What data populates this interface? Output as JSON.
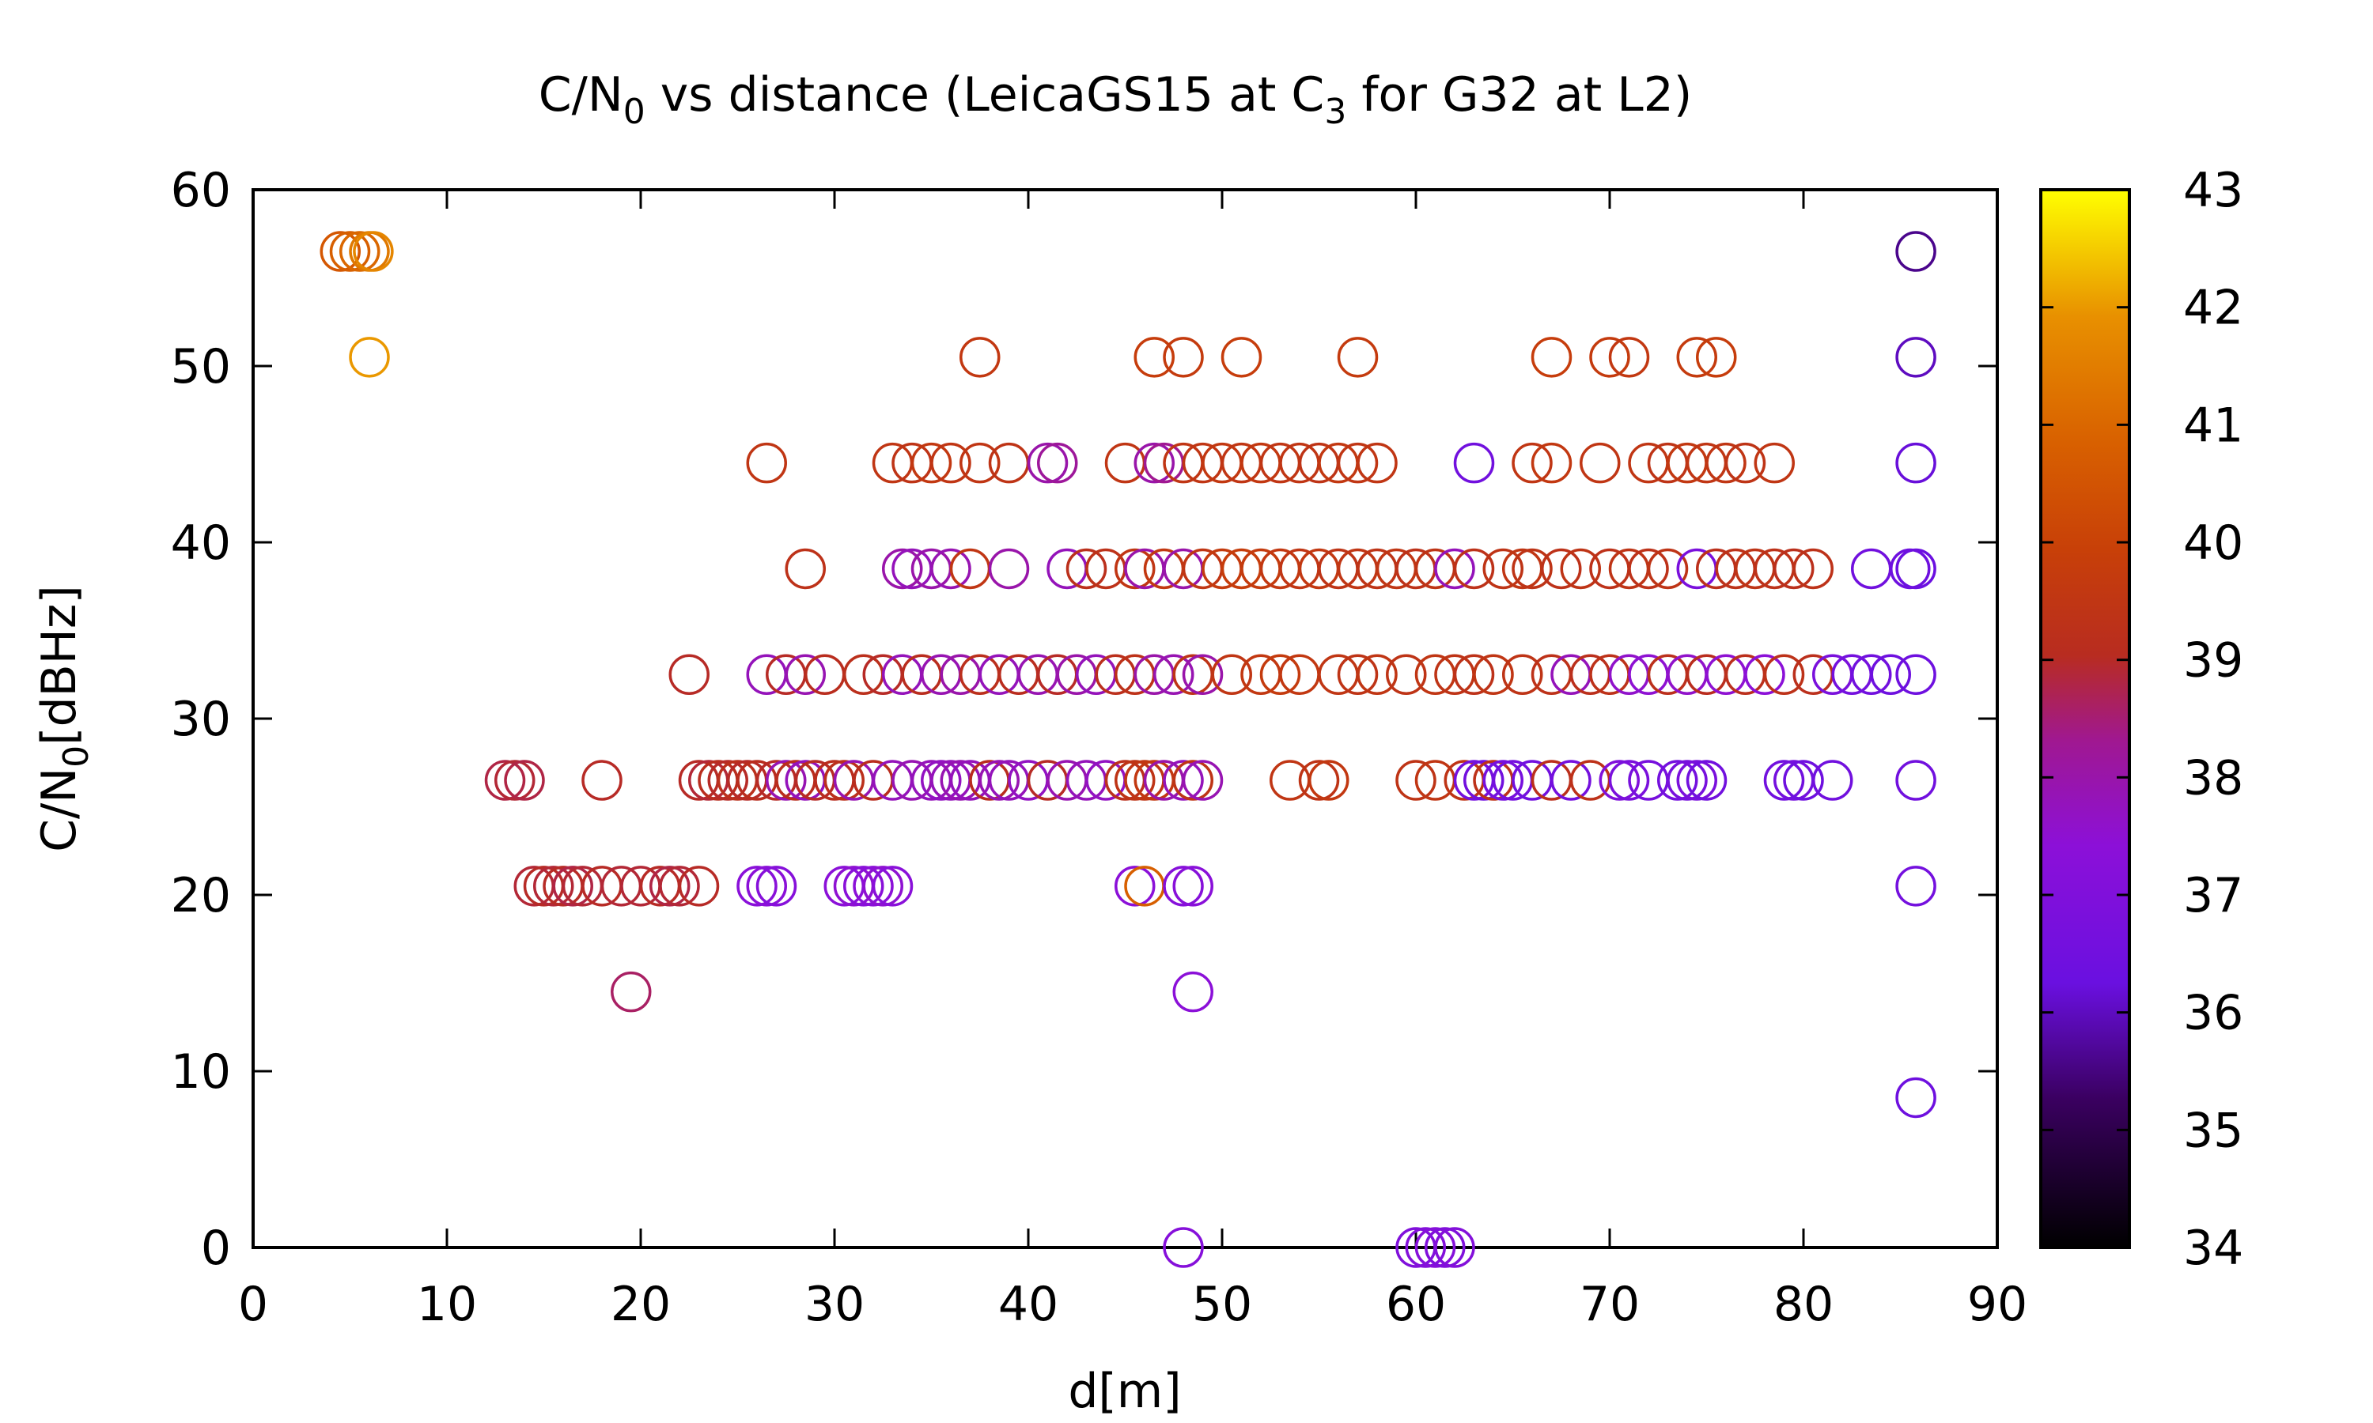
{
  "chart_data": {
    "type": "scatter",
    "title": {
      "main": "C/N",
      "main_sub": "0",
      "mid": " vs distance (LeicaGS15 at C",
      "mid_sub": "3",
      "end": " for G32 at L2)"
    },
    "xlabel": "d[m]",
    "ylabel": {
      "main": "C/N",
      "sub": "0",
      "end": "[dBHz]"
    },
    "xlim": [
      0,
      90
    ],
    "ylim": [
      0,
      60
    ],
    "x_ticks": [
      0,
      10,
      20,
      30,
      40,
      50,
      60,
      70,
      80,
      90
    ],
    "y_ticks": [
      0,
      10,
      20,
      30,
      40,
      50,
      60
    ],
    "colorbar": {
      "min": 34,
      "max": 43,
      "ticks": [
        34,
        35,
        36,
        37,
        38,
        39,
        40,
        41,
        42,
        43
      ]
    },
    "marker": "open-circle",
    "grid": false,
    "points": [
      [
        4.5,
        56.5,
        40.6
      ],
      [
        5.0,
        56.5,
        40.8
      ],
      [
        5.5,
        56.5,
        41.0
      ],
      [
        6.0,
        56.5,
        41.4
      ],
      [
        6.2,
        56.5,
        41.7
      ],
      [
        6.0,
        50.5,
        42.0
      ],
      [
        37.5,
        50.5,
        39.6
      ],
      [
        46.5,
        50.5,
        39.8
      ],
      [
        48.0,
        50.5,
        39.7
      ],
      [
        51.0,
        50.5,
        39.8
      ],
      [
        57.0,
        50.5,
        39.7
      ],
      [
        67.0,
        50.5,
        39.8
      ],
      [
        70.0,
        50.5,
        39.7
      ],
      [
        71.0,
        50.5,
        39.6
      ],
      [
        74.5,
        50.5,
        39.7
      ],
      [
        75.5,
        50.5,
        39.8
      ],
      [
        85.8,
        56.5,
        35.6
      ],
      [
        85.8,
        50.5,
        36.0
      ],
      [
        85.8,
        44.5,
        36.2
      ],
      [
        85.8,
        38.5,
        36.3
      ],
      [
        85.8,
        32.5,
        36.4
      ],
      [
        85.8,
        26.5,
        36.5
      ],
      [
        85.8,
        20.5,
        36.6
      ],
      [
        85.8,
        8.5,
        36.4
      ],
      [
        26.5,
        44.5,
        39.5
      ],
      [
        33.0,
        44.5,
        39.5
      ],
      [
        34.0,
        44.5,
        39.4
      ],
      [
        35.0,
        44.5,
        39.6
      ],
      [
        36.0,
        44.5,
        39.5
      ],
      [
        37.5,
        44.5,
        39.5
      ],
      [
        39.0,
        44.5,
        39.4
      ],
      [
        41.0,
        44.5,
        38.0
      ],
      [
        41.5,
        44.5,
        38.2
      ],
      [
        45.0,
        44.5,
        39.5
      ],
      [
        46.5,
        44.5,
        38.0
      ],
      [
        47.0,
        44.5,
        38.3
      ],
      [
        48.0,
        44.5,
        39.5
      ],
      [
        49.0,
        44.5,
        39.5
      ],
      [
        50.0,
        44.5,
        39.6
      ],
      [
        51.0,
        44.5,
        39.5
      ],
      [
        52.0,
        44.5,
        39.6
      ],
      [
        53.0,
        44.5,
        39.5
      ],
      [
        54.0,
        44.5,
        39.5
      ],
      [
        55.0,
        44.5,
        39.4
      ],
      [
        56.0,
        44.5,
        39.6
      ],
      [
        57.0,
        44.5,
        39.5
      ],
      [
        58.0,
        44.5,
        39.5
      ],
      [
        63.0,
        44.5,
        36.5
      ],
      [
        66.0,
        44.5,
        39.5
      ],
      [
        67.0,
        44.5,
        39.6
      ],
      [
        69.5,
        44.5,
        39.5
      ],
      [
        72.0,
        44.5,
        39.5
      ],
      [
        73.0,
        44.5,
        39.4
      ],
      [
        74.0,
        44.5,
        39.6
      ],
      [
        75.0,
        44.5,
        39.5
      ],
      [
        76.0,
        44.5,
        39.5
      ],
      [
        77.0,
        44.5,
        39.4
      ],
      [
        78.5,
        44.5,
        39.5
      ],
      [
        28.5,
        38.5,
        39.3
      ],
      [
        33.5,
        38.5,
        38.0
      ],
      [
        34.0,
        38.5,
        37.8
      ],
      [
        35.0,
        38.5,
        38.0
      ],
      [
        36.0,
        38.5,
        37.9
      ],
      [
        37.0,
        38.5,
        39.5
      ],
      [
        39.0,
        38.5,
        38.0
      ],
      [
        42.0,
        38.5,
        37.8
      ],
      [
        43.0,
        38.5,
        39.2
      ],
      [
        44.0,
        38.5,
        39.3
      ],
      [
        45.5,
        38.5,
        39.5
      ],
      [
        46.0,
        38.5,
        38.0
      ],
      [
        47.0,
        38.5,
        39.6
      ],
      [
        48.0,
        38.5,
        38.0
      ],
      [
        49.0,
        38.5,
        39.5
      ],
      [
        50.0,
        38.5,
        39.7
      ],
      [
        51.0,
        38.5,
        39.8
      ],
      [
        52.0,
        38.5,
        39.7
      ],
      [
        53.0,
        38.5,
        39.6
      ],
      [
        54.0,
        38.5,
        39.5
      ],
      [
        55.0,
        38.5,
        39.6
      ],
      [
        56.0,
        38.5,
        39.4
      ],
      [
        57.0,
        38.5,
        39.5
      ],
      [
        58.0,
        38.5,
        39.4
      ],
      [
        59.0,
        38.5,
        39.5
      ],
      [
        60.0,
        38.5,
        39.3
      ],
      [
        61.0,
        38.5,
        39.4
      ],
      [
        62.0,
        38.5,
        37.8
      ],
      [
        63.0,
        38.5,
        39.3
      ],
      [
        64.5,
        38.5,
        39.4
      ],
      [
        65.5,
        38.5,
        39.5
      ],
      [
        66.0,
        38.5,
        39.4
      ],
      [
        67.5,
        38.5,
        39.3
      ],
      [
        68.5,
        38.5,
        39.4
      ],
      [
        70.0,
        38.5,
        39.3
      ],
      [
        71.0,
        38.5,
        39.4
      ],
      [
        72.0,
        38.5,
        39.3
      ],
      [
        73.0,
        38.5,
        39.4
      ],
      [
        74.5,
        38.5,
        36.8
      ],
      [
        75.5,
        38.5,
        39.2
      ],
      [
        76.5,
        38.5,
        39.3
      ],
      [
        77.5,
        38.5,
        39.4
      ],
      [
        78.5,
        38.5,
        39.3
      ],
      [
        79.5,
        38.5,
        39.2
      ],
      [
        80.5,
        38.5,
        39.3
      ],
      [
        83.5,
        38.5,
        36.5
      ],
      [
        85.5,
        38.5,
        36.4
      ],
      [
        22.5,
        32.5,
        39.0
      ],
      [
        26.5,
        32.5,
        37.8
      ],
      [
        27.5,
        32.5,
        39.0
      ],
      [
        28.5,
        32.5,
        37.9
      ],
      [
        29.5,
        32.5,
        39.1
      ],
      [
        31.5,
        32.5,
        39.2
      ],
      [
        32.5,
        32.5,
        39.0
      ],
      [
        33.5,
        32.5,
        37.8
      ],
      [
        34.5,
        32.5,
        39.1
      ],
      [
        35.5,
        32.5,
        37.9
      ],
      [
        36.5,
        32.5,
        38.0
      ],
      [
        37.5,
        32.5,
        39.2
      ],
      [
        38.5,
        32.5,
        37.8
      ],
      [
        39.5,
        32.5,
        39.1
      ],
      [
        40.5,
        32.5,
        37.9
      ],
      [
        41.5,
        32.5,
        39.0
      ],
      [
        42.5,
        32.5,
        38.0
      ],
      [
        43.5,
        32.5,
        37.8
      ],
      [
        44.5,
        32.5,
        39.2
      ],
      [
        45.5,
        32.5,
        39.3
      ],
      [
        46.5,
        32.5,
        38.0
      ],
      [
        47.5,
        32.5,
        37.9
      ],
      [
        48.5,
        32.5,
        39.4
      ],
      [
        49.0,
        32.5,
        38.0
      ],
      [
        50.5,
        32.5,
        39.5
      ],
      [
        52.0,
        32.5,
        39.6
      ],
      [
        53.0,
        32.5,
        39.7
      ],
      [
        54.0,
        32.5,
        39.6
      ],
      [
        56.0,
        32.5,
        39.5
      ],
      [
        57.0,
        32.5,
        39.4
      ],
      [
        58.0,
        32.5,
        39.5
      ],
      [
        59.5,
        32.5,
        39.4
      ],
      [
        61.0,
        32.5,
        39.5
      ],
      [
        62.0,
        32.5,
        39.4
      ],
      [
        63.0,
        32.5,
        39.3
      ],
      [
        64.0,
        32.5,
        39.5
      ],
      [
        65.5,
        32.5,
        39.4
      ],
      [
        67.0,
        32.5,
        39.3
      ],
      [
        68.0,
        32.5,
        37.8
      ],
      [
        69.0,
        32.5,
        39.2
      ],
      [
        70.0,
        32.5,
        39.3
      ],
      [
        71.0,
        32.5,
        37.6
      ],
      [
        72.0,
        32.5,
        37.5
      ],
      [
        73.0,
        32.5,
        39.2
      ],
      [
        74.0,
        32.5,
        37.6
      ],
      [
        75.0,
        32.5,
        39.1
      ],
      [
        76.0,
        32.5,
        37.5
      ],
      [
        77.0,
        32.5,
        39.2
      ],
      [
        78.0,
        32.5,
        37.4
      ],
      [
        79.0,
        32.5,
        39.3
      ],
      [
        80.5,
        32.5,
        39.2
      ],
      [
        81.5,
        32.5,
        36.8
      ],
      [
        82.5,
        32.5,
        36.6
      ],
      [
        83.5,
        32.5,
        36.5
      ],
      [
        84.5,
        32.5,
        36.4
      ],
      [
        13.0,
        26.5,
        38.8
      ],
      [
        13.5,
        26.5,
        38.9
      ],
      [
        14.0,
        26.5,
        38.8
      ],
      [
        18.0,
        26.5,
        39.0
      ],
      [
        23.0,
        26.5,
        39.0
      ],
      [
        23.5,
        26.5,
        38.9
      ],
      [
        24.0,
        26.5,
        39.1
      ],
      [
        24.5,
        26.5,
        39.0
      ],
      [
        25.0,
        26.5,
        39.2
      ],
      [
        25.5,
        26.5,
        39.0
      ],
      [
        26.0,
        26.5,
        39.1
      ],
      [
        27.0,
        26.5,
        39.0
      ],
      [
        27.5,
        26.5,
        37.9
      ],
      [
        28.0,
        26.5,
        39.1
      ],
      [
        28.5,
        26.5,
        37.8
      ],
      [
        29.0,
        26.5,
        39.0
      ],
      [
        30.0,
        26.5,
        39.1
      ],
      [
        30.5,
        26.5,
        39.2
      ],
      [
        31.0,
        26.5,
        37.9
      ],
      [
        32.0,
        26.5,
        39.1
      ],
      [
        33.0,
        26.5,
        37.8
      ],
      [
        34.0,
        26.5,
        37.9
      ],
      [
        35.0,
        26.5,
        37.8
      ],
      [
        35.5,
        26.5,
        37.7
      ],
      [
        36.0,
        26.5,
        37.8
      ],
      [
        36.5,
        26.5,
        37.9
      ],
      [
        37.0,
        26.5,
        37.8
      ],
      [
        38.0,
        26.5,
        39.1
      ],
      [
        38.5,
        26.5,
        37.9
      ],
      [
        39.0,
        26.5,
        37.8
      ],
      [
        40.0,
        26.5,
        37.7
      ],
      [
        41.0,
        26.5,
        39.0
      ],
      [
        42.0,
        26.5,
        37.9
      ],
      [
        43.0,
        26.5,
        37.8
      ],
      [
        44.0,
        26.5,
        37.7
      ],
      [
        45.0,
        26.5,
        39.2
      ],
      [
        45.5,
        26.5,
        39.4
      ],
      [
        46.0,
        26.5,
        39.5
      ],
      [
        46.5,
        26.5,
        39.6
      ],
      [
        47.0,
        26.5,
        38.0
      ],
      [
        48.0,
        26.5,
        37.8
      ],
      [
        48.5,
        26.5,
        39.4
      ],
      [
        49.0,
        26.5,
        37.9
      ],
      [
        53.5,
        26.5,
        39.5
      ],
      [
        55.0,
        26.5,
        39.4
      ],
      [
        55.5,
        26.5,
        39.6
      ],
      [
        60.0,
        26.5,
        39.4
      ],
      [
        61.0,
        26.5,
        39.5
      ],
      [
        62.5,
        26.5,
        39.4
      ],
      [
        63.0,
        26.5,
        36.6
      ],
      [
        63.5,
        26.5,
        36.5
      ],
      [
        64.0,
        26.5,
        39.3
      ],
      [
        64.5,
        26.5,
        36.7
      ],
      [
        65.0,
        26.5,
        36.6
      ],
      [
        66.0,
        26.5,
        36.5
      ],
      [
        67.0,
        26.5,
        39.2
      ],
      [
        68.0,
        26.5,
        36.6
      ],
      [
        69.0,
        26.5,
        39.3
      ],
      [
        70.5,
        26.5,
        37.0
      ],
      [
        71.0,
        26.5,
        36.8
      ],
      [
        72.0,
        26.5,
        36.7
      ],
      [
        73.5,
        26.5,
        36.6
      ],
      [
        74.0,
        26.5,
        36.7
      ],
      [
        74.5,
        26.5,
        36.8
      ],
      [
        75.0,
        26.5,
        36.5
      ],
      [
        79.0,
        26.5,
        36.5
      ],
      [
        79.5,
        26.5,
        36.6
      ],
      [
        80.0,
        26.5,
        36.4
      ],
      [
        81.5,
        26.5,
        36.5
      ],
      [
        14.5,
        20.5,
        38.9
      ],
      [
        15.0,
        20.5,
        39.0
      ],
      [
        15.5,
        20.5,
        38.9
      ],
      [
        16.0,
        20.5,
        39.0
      ],
      [
        16.5,
        20.5,
        38.8
      ],
      [
        17.0,
        20.5,
        38.9
      ],
      [
        18.0,
        20.5,
        39.0
      ],
      [
        19.0,
        20.5,
        38.9
      ],
      [
        20.0,
        20.5,
        38.9
      ],
      [
        21.0,
        20.5,
        39.0
      ],
      [
        21.5,
        20.5,
        38.8
      ],
      [
        22.0,
        20.5,
        38.9
      ],
      [
        23.0,
        20.5,
        39.0
      ],
      [
        26.0,
        20.5,
        37.3
      ],
      [
        26.5,
        20.5,
        37.4
      ],
      [
        27.0,
        20.5,
        37.2
      ],
      [
        30.5,
        20.5,
        37.4
      ],
      [
        31.0,
        20.5,
        37.5
      ],
      [
        31.5,
        20.5,
        37.3
      ],
      [
        32.0,
        20.5,
        37.4
      ],
      [
        32.5,
        20.5,
        37.5
      ],
      [
        33.0,
        20.5,
        37.3
      ],
      [
        45.5,
        20.5,
        37.4
      ],
      [
        46.0,
        20.5,
        40.8
      ],
      [
        48.0,
        20.5,
        37.2
      ],
      [
        48.5,
        20.5,
        37.3
      ],
      [
        19.5,
        14.5,
        38.6
      ],
      [
        48.5,
        14.5,
        37.4
      ],
      [
        48.0,
        0,
        37.2
      ],
      [
        60.0,
        0,
        37.0
      ],
      [
        60.5,
        0,
        37.1
      ],
      [
        61.0,
        0,
        37.2
      ],
      [
        61.5,
        0,
        37.0
      ],
      [
        62.0,
        0,
        37.1
      ]
    ]
  }
}
